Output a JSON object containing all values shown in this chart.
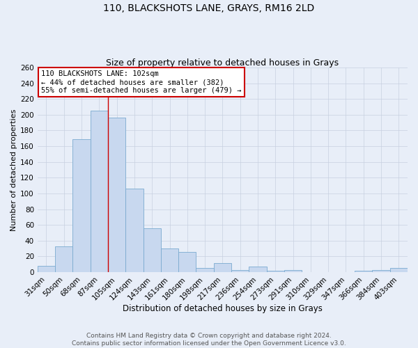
{
  "title": "110, BLACKSHOTS LANE, GRAYS, RM16 2LD",
  "subtitle": "Size of property relative to detached houses in Grays",
  "xlabel": "Distribution of detached houses by size in Grays",
  "ylabel": "Number of detached properties",
  "footer_line1": "Contains HM Land Registry data © Crown copyright and database right 2024.",
  "footer_line2": "Contains public sector information licensed under the Open Government Licence v3.0.",
  "categories": [
    "31sqm",
    "50sqm",
    "68sqm",
    "87sqm",
    "105sqm",
    "124sqm",
    "143sqm",
    "161sqm",
    "180sqm",
    "198sqm",
    "217sqm",
    "236sqm",
    "254sqm",
    "273sqm",
    "291sqm",
    "310sqm",
    "329sqm",
    "347sqm",
    "366sqm",
    "384sqm",
    "403sqm"
  ],
  "values": [
    8,
    33,
    169,
    205,
    196,
    106,
    56,
    30,
    26,
    5,
    12,
    3,
    7,
    2,
    3,
    0,
    0,
    0,
    2,
    3,
    5
  ],
  "bar_color": "#c8d8ef",
  "bar_edge_color": "#7aaad0",
  "vline_x_index": 4,
  "vline_color": "#cc0000",
  "annotation_text_line1": "110 BLACKSHOTS LANE: 102sqm",
  "annotation_text_line2": "← 44% of detached houses are smaller (382)",
  "annotation_text_line3": "55% of semi-detached houses are larger (479) →",
  "annotation_box_facecolor": "#ffffff",
  "annotation_border_color": "#cc0000",
  "ylim": [
    0,
    260
  ],
  "yticks": [
    0,
    20,
    40,
    60,
    80,
    100,
    120,
    140,
    160,
    180,
    200,
    220,
    240,
    260
  ],
  "grid_color": "#c8d0e0",
  "background_color": "#e8eef8",
  "title_fontsize": 10,
  "subtitle_fontsize": 9,
  "xlabel_fontsize": 8.5,
  "ylabel_fontsize": 8,
  "tick_fontsize": 7.5,
  "annotation_fontsize": 7.5,
  "footer_fontsize": 6.5
}
